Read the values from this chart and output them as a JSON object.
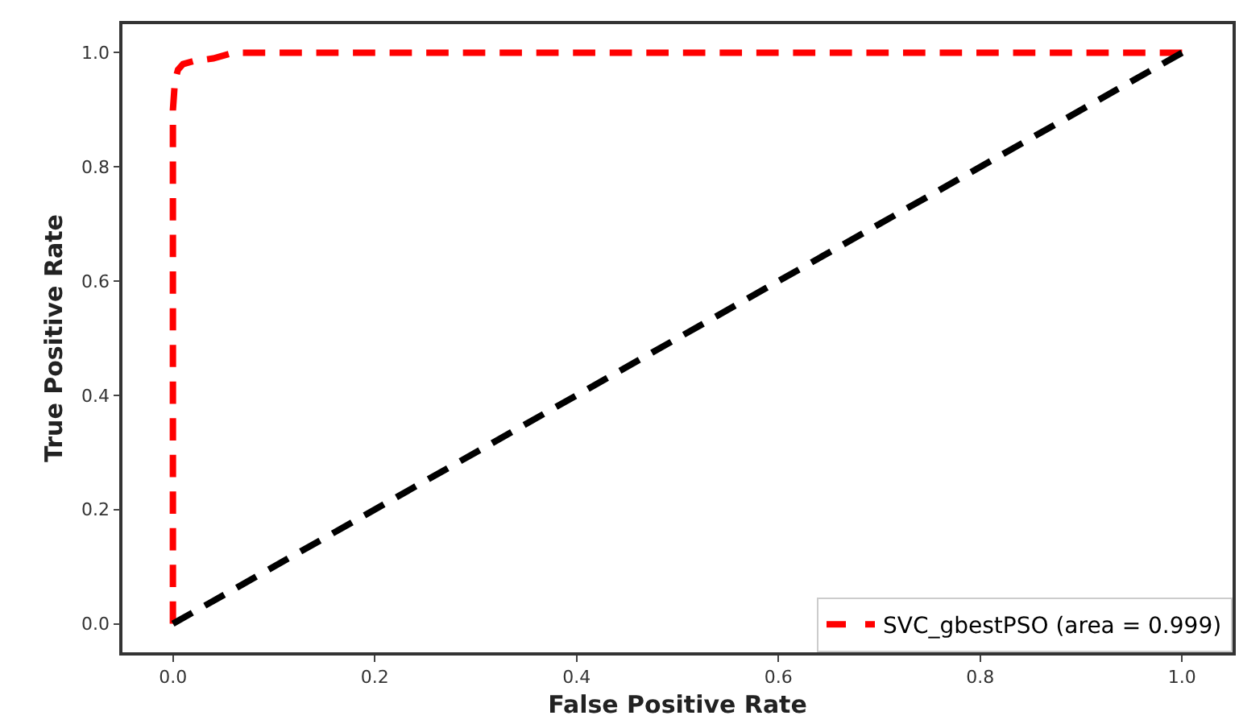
{
  "chart_data": {
    "type": "line",
    "xlabel": "False Positive Rate",
    "ylabel": "True Positive Rate",
    "series": [
      {
        "name": "SVC_gbestPSO (area = 0.999)",
        "color": "#ff0000",
        "x": [
          0,
          0,
          0.002,
          0.005,
          0.01,
          0.02,
          0.04,
          0.06,
          1
        ],
        "values": [
          0,
          0.9,
          0.95,
          0.97,
          0.98,
          0.985,
          0.99,
          1,
          1
        ]
      },
      {
        "color": "#000000",
        "x": [
          0,
          1
        ],
        "values": [
          0,
          1
        ]
      }
    ],
    "xlim": [
      -0.05,
      1.05
    ],
    "ylim": [
      -0.05,
      1.05
    ],
    "xticks": [
      {
        "value": 0,
        "label": "0.0"
      },
      {
        "value": 0.2,
        "label": "0.2"
      },
      {
        "value": 0.4,
        "label": "0.4"
      },
      {
        "value": 0.6,
        "label": "0.6"
      },
      {
        "value": 0.8,
        "label": "0.8"
      },
      {
        "value": 1,
        "label": "1.0"
      }
    ],
    "yticks": [
      {
        "value": 0,
        "label": "0.0"
      },
      {
        "value": 0.2,
        "label": "0.2"
      },
      {
        "value": 0.4,
        "label": "0.4"
      },
      {
        "value": 0.6,
        "label": "0.6"
      },
      {
        "value": 0.8,
        "label": "0.8"
      },
      {
        "value": 1,
        "label": "1.0"
      }
    ],
    "grid": false,
    "legend": "bottom right",
    "marker": "none",
    "line_style": "dashed"
  }
}
